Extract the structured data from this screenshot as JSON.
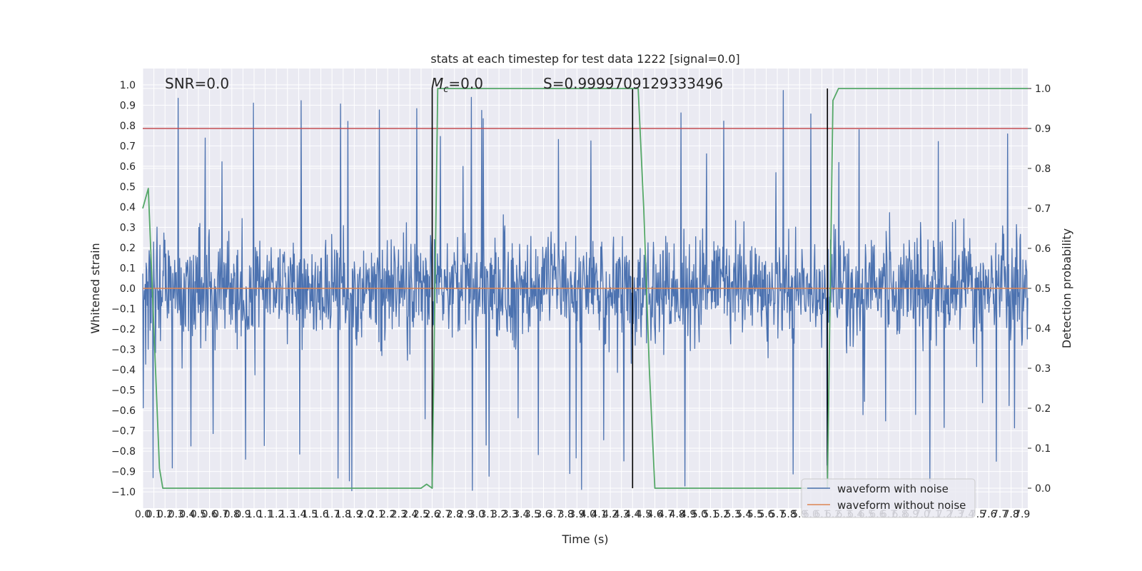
{
  "chart_data": {
    "type": "line",
    "title": "stats at each timestep for test data 1222 [signal=0.0]",
    "xlabel": "Time (s)",
    "ylabel": "Whitened strain",
    "y2label": "Detection probability",
    "xlim": [
      0.0,
      7.95
    ],
    "ylim": [
      -1.08,
      1.08
    ],
    "y2lim": [
      -0.05,
      1.05
    ],
    "xtick_step": 0.1,
    "x_ticks_count": 80,
    "yticks": [
      -1.0,
      -0.9,
      -0.8,
      -0.7,
      -0.6,
      -0.5,
      -0.4,
      -0.3,
      -0.2,
      -0.1,
      0.0,
      0.1,
      0.2,
      0.3,
      0.4,
      0.5,
      0.6,
      0.7,
      0.8,
      0.9,
      1.0
    ],
    "y2ticks": [
      0.0,
      0.1,
      0.2,
      0.3,
      0.4,
      0.5,
      0.6,
      0.7,
      0.8,
      0.9,
      1.0
    ],
    "grid": true,
    "legend_position": "bottom-right",
    "annotations": {
      "snr": "SNR=0.0",
      "mc_symbol": "M",
      "mc_subscript": "c",
      "mc_value": "=0.0",
      "score": "S=0.9999709129333496"
    },
    "series": [
      {
        "name": "waveform with noise",
        "color": "#4c72b0",
        "description": "noise-only whitened strain, dense, amplitude typically ±0.4 with peaks to ±1.0",
        "amplitude": 0.4,
        "peak": 1.0
      },
      {
        "name": "waveform without noise",
        "color": "#dd8452",
        "x": [
          0.0,
          7.95
        ],
        "y": [
          0.0,
          0.0
        ]
      },
      {
        "name": "detection probability",
        "color": "#55a868",
        "axis": "right",
        "x": [
          0.0,
          0.05,
          0.1,
          0.15,
          0.18,
          0.2,
          0.25,
          0.5,
          1.0,
          1.5,
          2.0,
          2.5,
          2.55,
          2.6,
          2.65,
          2.7,
          2.8,
          3.0,
          3.5,
          4.0,
          4.4,
          4.45,
          4.5,
          4.55,
          4.6,
          5.0,
          5.5,
          6.0,
          6.1,
          6.15,
          6.2,
          6.25,
          7.95
        ],
        "y": [
          0.7,
          0.75,
          0.4,
          0.05,
          0.0,
          0.0,
          0.0,
          0.0,
          0.0,
          0.0,
          0.0,
          0.0,
          0.01,
          0.0,
          1.0,
          1.0,
          1.0,
          1.0,
          1.0,
          1.0,
          1.0,
          1.0,
          0.7,
          0.3,
          0.0,
          0.0,
          0.0,
          0.0,
          0.0,
          0.0,
          0.97,
          1.0,
          1.0
        ]
      }
    ],
    "hlines": [
      {
        "name": "threshold",
        "color": "#c44e52",
        "axis": "right",
        "y": 0.9
      }
    ],
    "vlines": [
      {
        "x": 2.6,
        "y2_range": [
          0.0,
          1.0
        ],
        "color": "#000000"
      },
      {
        "x": 4.4,
        "y2_range": [
          0.0,
          1.0
        ],
        "color": "#000000"
      },
      {
        "x": 6.15,
        "y2_range": [
          0.0,
          1.0
        ],
        "color": "#000000"
      }
    ]
  }
}
